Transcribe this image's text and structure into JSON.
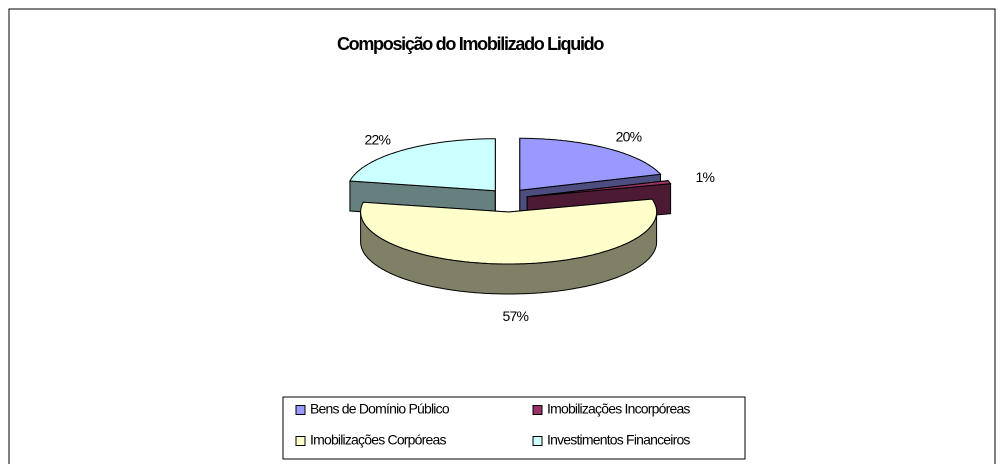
{
  "chart_data": {
    "type": "pie",
    "title": "Composição do Imobilizado Liquido",
    "categories": [
      "Bens de Domínio Público",
      "Imobilizações Incorpóreas",
      "Imobilizações Corpóreas",
      "Investimentos Financeiros"
    ],
    "values": [
      20,
      1,
      57,
      22
    ],
    "value_labels": [
      "20%",
      "1%",
      "57%",
      "22%"
    ],
    "colors": [
      "#9999ff",
      "#993366",
      "#ffffcc",
      "#ccffff"
    ],
    "legend": "bottom"
  }
}
